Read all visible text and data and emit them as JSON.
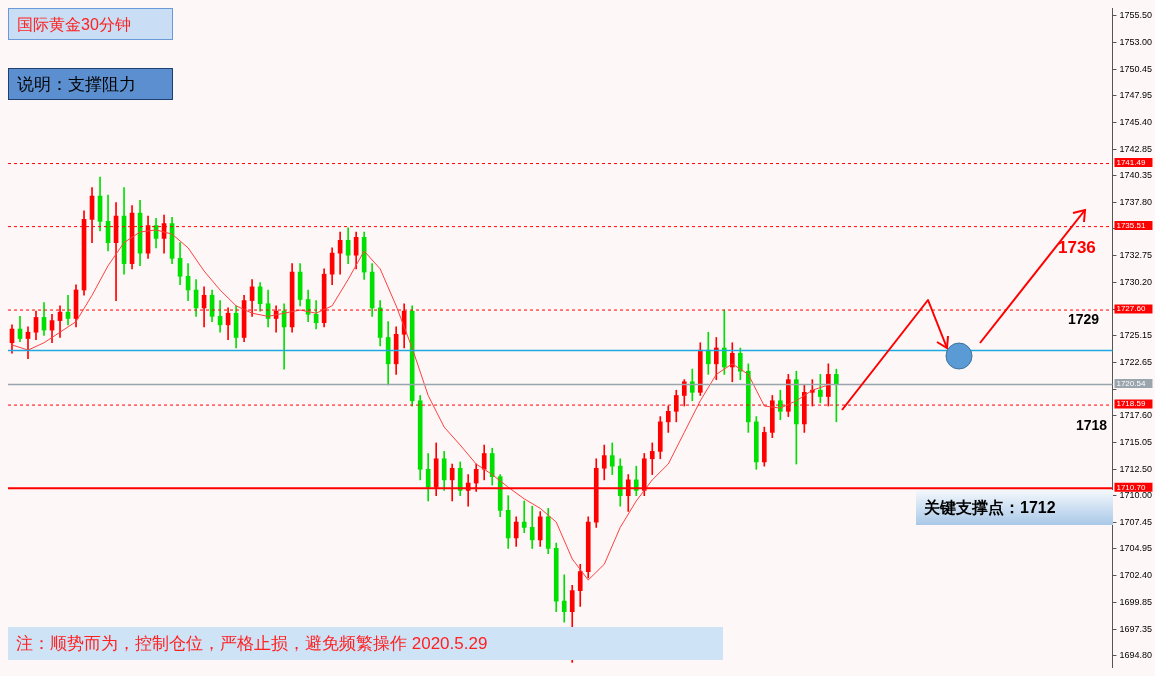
{
  "chart_data": {
    "type": "candlestick",
    "title": "国际黄金30分钟",
    "subtitle": "说明：支撑阻力",
    "annotations": [
      "1736",
      "1729",
      "1718",
      "关键支撑点：1712",
      "注：顺势而为，控制仓位，严格止损，避免频繁操作  2020.5.29"
    ],
    "categories": [
      null,
      null,
      null,
      null,
      null,
      null,
      null,
      null,
      null,
      null,
      null,
      null,
      null,
      null,
      null,
      null,
      null,
      null,
      null,
      null,
      null,
      null,
      null,
      null,
      null,
      null,
      null,
      null,
      null,
      null,
      null,
      null,
      null,
      null,
      null,
      null,
      null,
      null,
      null,
      null,
      null,
      null,
      null,
      null,
      null,
      null,
      null,
      null,
      null,
      null,
      null,
      null,
      null,
      null,
      null,
      null,
      null,
      null,
      null,
      null,
      null,
      null,
      null,
      null,
      null,
      null,
      null,
      null,
      null,
      null,
      null,
      null,
      null,
      null,
      null,
      null,
      null,
      null,
      null,
      null,
      null,
      null,
      null,
      null,
      null,
      null,
      null,
      null,
      null,
      null,
      null,
      null,
      null,
      null,
      null,
      null,
      null,
      null,
      null,
      null,
      null,
      null,
      null,
      null,
      null,
      null,
      null,
      null,
      null,
      null,
      null,
      null,
      null,
      null,
      null,
      null,
      null,
      null,
      null,
      null,
      null,
      null,
      null,
      null,
      null,
      null,
      null,
      null,
      null,
      null,
      null,
      null,
      null,
      null,
      null,
      null,
      null,
      null
    ],
    "ohlc": [
      [
        1724.5,
        1726.2,
        1723.5,
        1725.8
      ],
      [
        1725.8,
        1727.0,
        1724.6,
        1724.9
      ],
      [
        1724.9,
        1726.0,
        1723.0,
        1725.5
      ],
      [
        1725.5,
        1727.5,
        1724.8,
        1726.9
      ],
      [
        1726.9,
        1728.3,
        1725.2,
        1725.7
      ],
      [
        1725.7,
        1727.2,
        1724.5,
        1726.6
      ],
      [
        1726.6,
        1728.0,
        1725.0,
        1727.4
      ],
      [
        1727.4,
        1729.0,
        1726.2,
        1726.8
      ],
      [
        1726.8,
        1730.0,
        1726.0,
        1729.5
      ],
      [
        1729.5,
        1737.0,
        1729.0,
        1736.2
      ],
      [
        1736.2,
        1739.2,
        1734.0,
        1738.4
      ],
      [
        1738.4,
        1740.2,
        1735.1,
        1736.0
      ],
      [
        1736.0,
        1738.5,
        1733.2,
        1734.0
      ],
      [
        1734.0,
        1737.8,
        1728.5,
        1736.5
      ],
      [
        1736.5,
        1739.2,
        1731.0,
        1732.0
      ],
      [
        1732.0,
        1737.5,
        1731.5,
        1736.8
      ],
      [
        1736.8,
        1738.0,
        1731.8,
        1733.0
      ],
      [
        1733.0,
        1736.5,
        1732.5,
        1735.6
      ],
      [
        1735.6,
        1736.3,
        1733.5,
        1734.4
      ],
      [
        1734.4,
        1736.6,
        1733.0,
        1735.8
      ],
      [
        1735.8,
        1736.4,
        1732.0,
        1732.5
      ],
      [
        1732.5,
        1734.0,
        1730.0,
        1730.8
      ],
      [
        1730.8,
        1732.0,
        1728.5,
        1729.5
      ],
      [
        1729.5,
        1730.5,
        1727.0,
        1727.8
      ],
      [
        1727.8,
        1729.8,
        1726.0,
        1729.0
      ],
      [
        1729.0,
        1729.5,
        1726.5,
        1727.0
      ],
      [
        1727.0,
        1728.5,
        1725.5,
        1726.2
      ],
      [
        1726.2,
        1727.8,
        1724.8,
        1727.3
      ],
      [
        1727.3,
        1728.0,
        1724.0,
        1725.0
      ],
      [
        1725.0,
        1729.0,
        1724.6,
        1728.5
      ],
      [
        1728.5,
        1730.5,
        1727.0,
        1729.8
      ],
      [
        1729.8,
        1730.2,
        1727.5,
        1728.2
      ],
      [
        1728.2,
        1729.5,
        1726.0,
        1726.8
      ],
      [
        1726.8,
        1728.0,
        1725.5,
        1727.5
      ],
      [
        1727.5,
        1728.2,
        1722.0,
        1726.0
      ],
      [
        1726.0,
        1732.0,
        1725.5,
        1731.2
      ],
      [
        1731.2,
        1732.0,
        1728.0,
        1728.6
      ],
      [
        1728.6,
        1729.5,
        1726.5,
        1727.2
      ],
      [
        1727.2,
        1728.5,
        1725.8,
        1726.4
      ],
      [
        1726.4,
        1731.5,
        1726.0,
        1731.0
      ],
      [
        1731.0,
        1733.5,
        1730.0,
        1733.0
      ],
      [
        1733.0,
        1735.0,
        1731.0,
        1734.2
      ],
      [
        1734.2,
        1735.4,
        1732.0,
        1732.8
      ],
      [
        1732.8,
        1735.0,
        1731.5,
        1734.5
      ],
      [
        1734.5,
        1735.0,
        1730.5,
        1731.2
      ],
      [
        1731.2,
        1732.0,
        1727.0,
        1727.8
      ],
      [
        1727.8,
        1728.5,
        1724.2,
        1725.0
      ],
      [
        1725.0,
        1726.5,
        1720.5,
        1722.5
      ],
      [
        1722.5,
        1726.0,
        1721.5,
        1725.3
      ],
      [
        1725.3,
        1728.2,
        1724.0,
        1727.5
      ],
      [
        1727.5,
        1728.0,
        1718.5,
        1719.0
      ],
      [
        1719.0,
        1719.5,
        1711.5,
        1712.5
      ],
      [
        1712.5,
        1714.0,
        1709.5,
        1710.8
      ],
      [
        1710.8,
        1715.0,
        1710.0,
        1713.5
      ],
      [
        1713.5,
        1714.2,
        1710.5,
        1711.5
      ],
      [
        1711.5,
        1713.0,
        1709.5,
        1712.6
      ],
      [
        1712.6,
        1713.2,
        1710.0,
        1710.5
      ],
      [
        1710.5,
        1712.0,
        1709.0,
        1711.2
      ],
      [
        1711.2,
        1713.0,
        1710.4,
        1712.5
      ],
      [
        1712.5,
        1714.8,
        1711.5,
        1714.0
      ],
      [
        1714.0,
        1714.5,
        1711.0,
        1711.8
      ],
      [
        1711.8,
        1712.0,
        1708.0,
        1708.6
      ],
      [
        1708.6,
        1710.0,
        1705.0,
        1706.0
      ],
      [
        1706.0,
        1708.0,
        1705.2,
        1707.5
      ],
      [
        1707.5,
        1709.5,
        1706.5,
        1707.0
      ],
      [
        1707.0,
        1709.0,
        1705.0,
        1705.8
      ],
      [
        1705.8,
        1708.5,
        1705.2,
        1708.0
      ],
      [
        1708.0,
        1708.8,
        1704.5,
        1705.0
      ],
      [
        1705.0,
        1705.5,
        1699.0,
        1700.0
      ],
      [
        1700.0,
        1702.5,
        1698.0,
        1699.0
      ],
      [
        1699.0,
        1701.5,
        1694.2,
        1701.0
      ],
      [
        1701.0,
        1703.5,
        1699.5,
        1702.8
      ],
      [
        1702.8,
        1708.0,
        1702.2,
        1707.5
      ],
      [
        1707.5,
        1713.5,
        1707.0,
        1712.6
      ],
      [
        1712.6,
        1714.8,
        1711.5,
        1713.8
      ],
      [
        1713.8,
        1715.0,
        1712.0,
        1712.8
      ],
      [
        1712.8,
        1713.5,
        1709.0,
        1710.0
      ],
      [
        1710.0,
        1712.0,
        1708.5,
        1711.5
      ],
      [
        1711.5,
        1712.8,
        1710.0,
        1710.5
      ],
      [
        1710.5,
        1714.0,
        1710.0,
        1713.5
      ],
      [
        1713.5,
        1715.0,
        1712.0,
        1714.2
      ],
      [
        1714.2,
        1717.5,
        1713.5,
        1717.0
      ],
      [
        1717.0,
        1718.5,
        1716.0,
        1718.0
      ],
      [
        1718.0,
        1720.0,
        1717.0,
        1719.5
      ],
      [
        1719.5,
        1721.0,
        1718.5,
        1720.8
      ],
      [
        1720.8,
        1722.0,
        1719.0,
        1719.8
      ],
      [
        1719.8,
        1724.5,
        1719.5,
        1723.8
      ],
      [
        1723.8,
        1725.5,
        1721.5,
        1722.5
      ],
      [
        1722.5,
        1725.0,
        1721.0,
        1724.0
      ],
      [
        1724.0,
        1727.6,
        1721.5,
        1722.2
      ],
      [
        1722.2,
        1724.5,
        1720.8,
        1723.5
      ],
      [
        1723.5,
        1724.0,
        1721.0,
        1721.8
      ],
      [
        1721.8,
        1722.5,
        1716.0,
        1717.0
      ],
      [
        1717.0,
        1717.5,
        1712.5,
        1713.2
      ],
      [
        1713.2,
        1716.5,
        1712.8,
        1716.0
      ],
      [
        1716.0,
        1719.5,
        1715.5,
        1719.0
      ],
      [
        1719.0,
        1720.0,
        1717.2,
        1718.0
      ],
      [
        1718.0,
        1721.5,
        1717.5,
        1721.0
      ],
      [
        1721.0,
        1721.8,
        1713.0,
        1716.8
      ],
      [
        1716.8,
        1720.5,
        1716.0,
        1719.8
      ],
      [
        1719.8,
        1721.0,
        1718.5,
        1720.0
      ],
      [
        1720.0,
        1721.5,
        1718.8,
        1719.4
      ],
      [
        1719.4,
        1722.5,
        1718.5,
        1721.5
      ],
      [
        1721.5,
        1722.0,
        1717.0,
        1720.54
      ],
      null,
      null,
      null,
      null,
      null,
      null,
      null,
      null,
      null,
      null,
      null,
      null,
      null,
      null,
      null,
      null,
      null,
      null,
      null,
      null,
      null,
      null,
      null,
      null,
      null,
      null,
      null,
      null,
      null,
      null,
      null,
      null,
      null,
      null
    ],
    "colors": [
      "#ff0000",
      "#00e000",
      "#ff0000",
      "#ff0000",
      "#00e000",
      "#ff0000",
      "#ff0000",
      "#00e000",
      "#ff0000",
      "#ff0000",
      "#ff0000",
      "#00e000",
      "#00e000",
      "#ff0000",
      "#00e000",
      "#ff0000",
      "#00e000",
      "#ff0000",
      "#00e000",
      "#ff0000",
      "#00e000",
      "#00e000",
      "#00e000",
      "#00e000",
      "#ff0000",
      "#00e000",
      "#00e000",
      "#ff0000",
      "#00e000",
      "#ff0000",
      "#ff0000",
      "#00e000",
      "#00e000",
      "#ff0000",
      "#00e000",
      "#ff0000",
      "#00e000",
      "#00e000",
      "#00e000",
      "#ff0000",
      "#ff0000",
      "#ff0000",
      "#00e000",
      "#ff0000",
      "#00e000",
      "#00e000",
      "#00e000",
      "#00e000",
      "#ff0000",
      "#ff0000",
      "#00e000",
      "#00e000",
      "#00e000",
      "#ff0000",
      "#00e000",
      "#ff0000",
      "#00e000",
      "#ff0000",
      "#ff0000",
      "#ff0000",
      "#00e000",
      "#00e000",
      "#00e000",
      "#ff0000",
      "#00e000",
      "#00e000",
      "#ff0000",
      "#00e000",
      "#00e000",
      "#00e000",
      "#ff0000",
      "#ff0000",
      "#ff0000",
      "#ff0000",
      "#ff0000",
      "#00e000",
      "#00e000",
      "#ff0000",
      "#00e000",
      "#ff0000",
      "#ff0000",
      "#ff0000",
      "#ff0000",
      "#ff0000",
      "#ff0000",
      "#00e000",
      "#ff0000",
      "#00e000",
      "#ff0000",
      "#00e000",
      "#ff0000",
      "#00e000",
      "#00e000",
      "#00e000",
      "#ff0000",
      "#ff0000",
      "#00e000",
      "#ff0000",
      "#00e000",
      "#ff0000",
      "#ff0000",
      "#00e000",
      "#ff0000",
      "#00e000",
      null,
      null,
      null,
      null,
      null,
      null,
      null,
      null,
      null,
      null,
      null,
      null,
      null,
      null,
      null,
      null,
      null,
      null,
      null,
      null,
      null,
      null,
      null,
      null,
      null,
      null,
      null,
      null,
      null,
      null,
      null,
      null,
      null,
      null
    ],
    "series": [
      {
        "type": "line",
        "color": "#ff4040",
        "values": [
          1724.3,
          null,
          1723.8,
          null,
          1724.5,
          null,
          1725.5,
          null,
          1726.5,
          null,
          1729,
          null,
          1731.8,
          null,
          1734,
          null,
          1735,
          null,
          1735.2,
          null,
          1734.8,
          null,
          1733.5,
          null,
          1731.3,
          null,
          1729.5,
          null,
          1728,
          null,
          1727.3,
          null,
          1727,
          null,
          1727.3,
          null,
          1727.6,
          null,
          1727.3,
          null,
          1728,
          null,
          1730.5,
          null,
          1733.2,
          null,
          1731.5,
          null,
          1728,
          null,
          1724,
          null,
          1719.5,
          null,
          1716.5,
          null,
          1714.8,
          null,
          1713,
          null,
          1712,
          null,
          1710.8,
          null,
          1709.7,
          null,
          1708.8,
          null,
          1707.5,
          null,
          1704,
          null,
          1702,
          null,
          1703.5,
          null,
          1707,
          null,
          1709.5,
          null,
          1711.5,
          null,
          1713,
          null,
          1716,
          null,
          1719,
          null,
          1721.5,
          null,
          1722.5,
          null,
          1721.5,
          null,
          1718.5,
          null,
          1718.3,
          null,
          1719,
          null,
          1720,
          null,
          1720.5,
          null,
          null,
          null,
          null,
          null,
          null,
          null,
          null,
          null,
          null,
          null,
          null,
          null,
          null,
          null,
          null,
          null,
          null,
          null,
          null,
          null,
          null,
          null,
          null,
          null,
          null,
          null,
          null,
          null,
          null,
          null,
          null,
          null,
          null,
          null
        ]
      }
    ],
    "ylim": [
      1693.7,
      1756.2
    ],
    "yticks": [
      {
        "value": 1755.5,
        "label": "1755.50"
      },
      {
        "value": 1753,
        "label": "1753.00"
      },
      {
        "value": 1750.45,
        "label": "1750.45"
      },
      {
        "value": 1747.95,
        "label": "1747.95"
      },
      {
        "value": 1745.4,
        "label": "1745.40"
      },
      {
        "value": 1742.85,
        "label": "1742.85"
      },
      {
        "value": 1740.35,
        "label": "1740.35"
      },
      {
        "value": 1737.8,
        "label": "1737.80"
      },
      {
        "value": 1735.3,
        "label": null
      },
      {
        "value": 1732.75,
        "label": "1732.75"
      },
      {
        "value": 1730.2,
        "label": "1730.20"
      },
      {
        "value": 1727.65,
        "label": null
      },
      {
        "value": 1725.15,
        "label": "1725.15"
      },
      {
        "value": 1722.65,
        "label": "1722.65"
      },
      {
        "value": 1720.1,
        "label": null
      },
      {
        "value": 1717.6,
        "label": "1717.60"
      },
      {
        "value": 1715.05,
        "label": "1715.05"
      },
      {
        "value": 1712.5,
        "label": "1712.50"
      },
      {
        "value": 1710,
        "label": "1710.00"
      },
      {
        "value": 1707.45,
        "label": "1707.45"
      },
      {
        "value": 1704.95,
        "label": "1704.95"
      },
      {
        "value": 1702.4,
        "label": "1702.40"
      },
      {
        "value": 1699.85,
        "label": "1699.85"
      },
      {
        "value": 1697.35,
        "label": "1697.35"
      },
      {
        "value": 1694.8,
        "label": "1694.80"
      }
    ],
    "ref_lines": [
      {
        "axis": "y",
        "value": 1741.49,
        "label": "1741.49",
        "color": "#ff0000",
        "line_style": "dashed"
      },
      {
        "axis": "y",
        "value": 1735.51,
        "label": "1735.51",
        "color": "#ff0000",
        "line_style": "dashed"
      },
      {
        "axis": "y",
        "value": 1727.6,
        "label": "1727.60",
        "color": "#ff0000",
        "line_style": "dashed"
      },
      {
        "axis": "y",
        "value": 1723.76,
        "label": null,
        "color": "#1fa8e0",
        "line_style": "solid"
      },
      {
        "axis": "y",
        "value": 1720.54,
        "label": "1720.54",
        "color": "#9aa4ad",
        "line_style": "solid"
      },
      {
        "axis": "y",
        "value": 1718.59,
        "label": "1718.59",
        "color": "#ff0000",
        "line_style": "dashed"
      },
      {
        "axis": "y",
        "value": 1710.7,
        "label": "1710.70",
        "color": "#ff0000",
        "line_style": "solid"
      }
    ],
    "tick_labels": "y",
    "grid": false,
    "legend": false
  }
}
